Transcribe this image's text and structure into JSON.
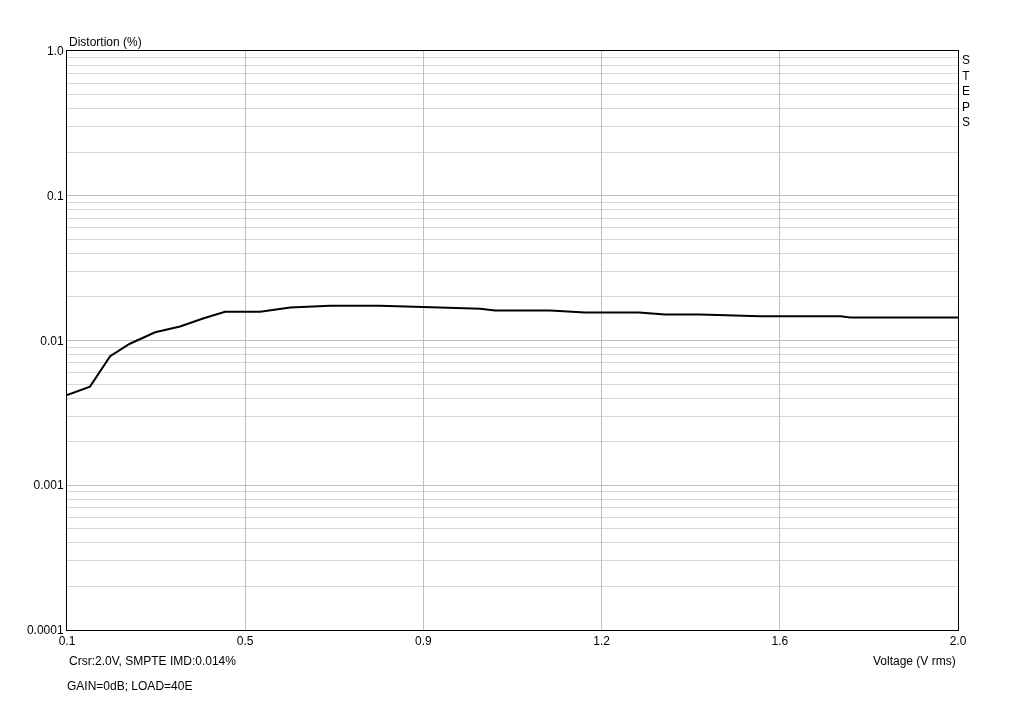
{
  "chart_data": {
    "type": "line",
    "ylabel": "Distortion (%)",
    "xlabel": "Voltage (V rms)",
    "annotations": [
      "Crsr:2.0V, SMPTE IMD:0.014%",
      "GAIN=0dB; LOAD=40E",
      "STEPS"
    ],
    "x": [
      0.1,
      0.149,
      0.192,
      0.234,
      0.288,
      0.341,
      0.39,
      0.437,
      0.512,
      0.576,
      0.661,
      0.767,
      0.895,
      0.981,
      1.013,
      1.13,
      1.205,
      1.32,
      1.375,
      1.45,
      1.524,
      1.578,
      1.75,
      1.77,
      2.0
    ],
    "series": [
      {
        "color": "#000000",
        "values": [
          0.0042,
          0.0048,
          0.0078,
          0.0095,
          0.0114,
          0.0125,
          0.0142,
          0.0158,
          0.0158,
          0.0169,
          0.0174,
          0.0174,
          0.0169,
          0.0166,
          0.0161,
          0.0161,
          0.0156,
          0.0156,
          0.0151,
          0.0151,
          0.0149,
          0.0147,
          0.0147,
          0.0144,
          0.0144
        ]
      }
    ],
    "xlim": [
      0.1,
      2.0
    ],
    "xticks": [
      0.1,
      {
        "value": 0.48,
        "label": "0.5"
      },
      {
        "value": 0.86,
        "label": "0.9"
      },
      {
        "value": 1.24,
        "label": "1.2"
      },
      {
        "value": 1.62,
        "label": "1.6"
      },
      {
        "value": 2.0,
        "label": "2.0"
      }
    ],
    "ylim": [
      0.0001,
      1
    ],
    "yticks": [
      0.0001,
      0.001,
      0.01,
      0.1,
      {
        "value": 1,
        "label": "1.0"
      }
    ],
    "log": "y",
    "grid": true,
    "marker": "none",
    "line_style": "solid"
  }
}
